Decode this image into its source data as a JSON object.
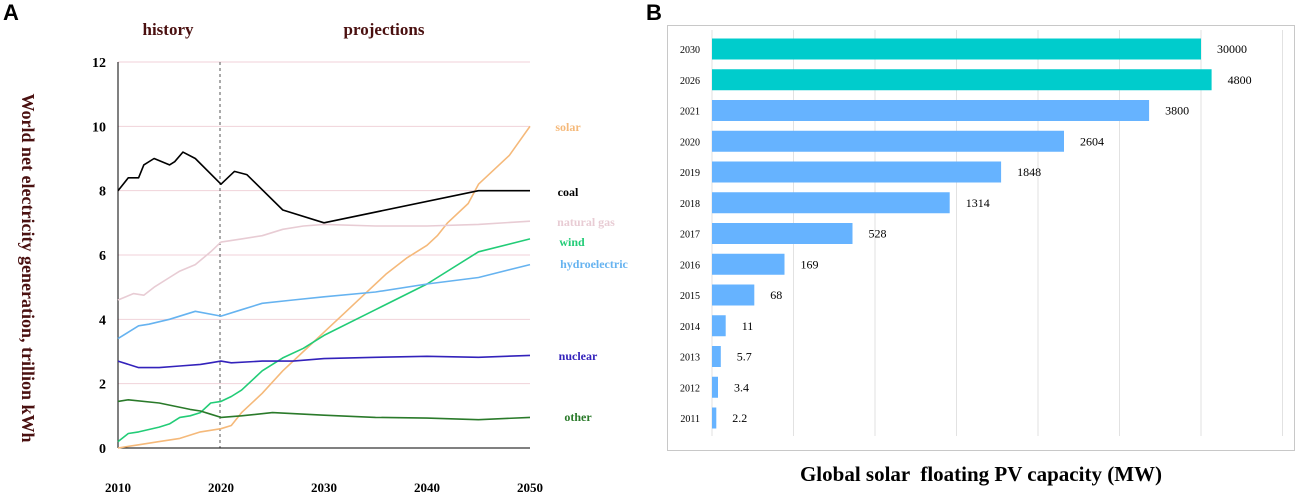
{
  "panels": {
    "a": "A",
    "b": "B"
  },
  "chart_data": [
    {
      "type": "line",
      "panel": "A",
      "ylabel": "World net electricity generation, trillion kWh",
      "xlabel": "",
      "xlim": [
        2010,
        2050
      ],
      "ylim": [
        0,
        12
      ],
      "xticks": [
        2010,
        2020,
        2030,
        2040,
        2050
      ],
      "yticks": [
        0,
        2,
        4,
        6,
        8,
        10,
        12
      ],
      "divider_x": 2020,
      "section_labels": {
        "history": "history",
        "projections": "projections"
      },
      "series": [
        {
          "name": "solar",
          "color": "#f5b97a",
          "points": [
            [
              2010,
              0
            ],
            [
              2012,
              0.1
            ],
            [
              2014,
              0.2
            ],
            [
              2016,
              0.3
            ],
            [
              2018,
              0.5
            ],
            [
              2020,
              0.6
            ],
            [
              2021,
              0.7
            ],
            [
              2022,
              1.1
            ],
            [
              2024,
              1.7
            ],
            [
              2026,
              2.4
            ],
            [
              2028,
              3.0
            ],
            [
              2030,
              3.6
            ],
            [
              2032,
              4.2
            ],
            [
              2034,
              4.8
            ],
            [
              2036,
              5.4
            ],
            [
              2038,
              5.9
            ],
            [
              2040,
              6.3
            ],
            [
              2041,
              6.6
            ],
            [
              2042,
              7.0
            ],
            [
              2044,
              7.6
            ],
            [
              2045,
              8.2
            ],
            [
              2046,
              8.5
            ],
            [
              2048,
              9.1
            ],
            [
              2050,
              10.0
            ]
          ]
        },
        {
          "name": "coal",
          "color": "#000000",
          "points": [
            [
              2010,
              8
            ],
            [
              2011,
              8.4
            ],
            [
              2012,
              8.4
            ],
            [
              2012.5,
              8.8
            ],
            [
              2013.5,
              9.0
            ],
            [
              2015,
              8.8
            ],
            [
              2015.5,
              8.9
            ],
            [
              2016.3,
              9.2
            ],
            [
              2017.5,
              9.0
            ],
            [
              2020,
              8.2
            ],
            [
              2021.3,
              8.6
            ],
            [
              2022.5,
              8.5
            ],
            [
              2026,
              7.4
            ],
            [
              2030,
              7.0
            ],
            [
              2045,
              8.0
            ],
            [
              2050,
              8.0
            ]
          ]
        },
        {
          "name": "natural gas",
          "color": "#e8ccd4",
          "points": [
            [
              2010,
              4.6
            ],
            [
              2011.5,
              4.8
            ],
            [
              2012.5,
              4.75
            ],
            [
              2013.5,
              5.0
            ],
            [
              2015,
              5.3
            ],
            [
              2016,
              5.5
            ],
            [
              2017.5,
              5.7
            ],
            [
              2019,
              6.1
            ],
            [
              2020,
              6.4
            ],
            [
              2022,
              6.5
            ],
            [
              2024,
              6.6
            ],
            [
              2026,
              6.8
            ],
            [
              2028,
              6.9
            ],
            [
              2030,
              6.95
            ],
            [
              2035,
              6.9
            ],
            [
              2040,
              6.9
            ],
            [
              2045,
              6.95
            ],
            [
              2050,
              7.05
            ]
          ]
        },
        {
          "name": "wind",
          "color": "#22cc77",
          "points": [
            [
              2010,
              0.2
            ],
            [
              2011,
              0.45
            ],
            [
              2012,
              0.5
            ],
            [
              2014,
              0.65
            ],
            [
              2015,
              0.75
            ],
            [
              2016,
              0.95
            ],
            [
              2017,
              1.0
            ],
            [
              2018,
              1.1
            ],
            [
              2019,
              1.4
            ],
            [
              2020,
              1.45
            ],
            [
              2021,
              1.6
            ],
            [
              2022,
              1.8
            ],
            [
              2024,
              2.4
            ],
            [
              2026,
              2.8
            ],
            [
              2028,
              3.1
            ],
            [
              2030,
              3.5
            ],
            [
              2035,
              4.3
            ],
            [
              2040,
              5.1
            ],
            [
              2045,
              6.1
            ],
            [
              2050,
              6.5
            ]
          ]
        },
        {
          "name": "hydroelectric",
          "color": "#66b3f0",
          "points": [
            [
              2010,
              3.4
            ],
            [
              2011,
              3.6
            ],
            [
              2012,
              3.8
            ],
            [
              2013,
              3.85
            ],
            [
              2015,
              4.0
            ],
            [
              2017.5,
              4.25
            ],
            [
              2020,
              4.1
            ],
            [
              2022,
              4.3
            ],
            [
              2024,
              4.5
            ],
            [
              2027,
              4.6
            ],
            [
              2030,
              4.7
            ],
            [
              2035,
              4.85
            ],
            [
              2040,
              5.1
            ],
            [
              2045,
              5.3
            ],
            [
              2050,
              5.7
            ]
          ]
        },
        {
          "name": "nuclear",
          "color": "#3322bb",
          "points": [
            [
              2010,
              2.7
            ],
            [
              2012,
              2.5
            ],
            [
              2014,
              2.5
            ],
            [
              2016,
              2.55
            ],
            [
              2018,
              2.6
            ],
            [
              2019,
              2.65
            ],
            [
              2020,
              2.7
            ],
            [
              2021,
              2.65
            ],
            [
              2024,
              2.7
            ],
            [
              2027,
              2.7
            ],
            [
              2030,
              2.78
            ],
            [
              2035,
              2.82
            ],
            [
              2040,
              2.85
            ],
            [
              2045,
              2.82
            ],
            [
              2050,
              2.88
            ]
          ]
        },
        {
          "name": "other",
          "color": "#2a7a2a",
          "points": [
            [
              2010,
              1.45
            ],
            [
              2011,
              1.5
            ],
            [
              2014,
              1.4
            ],
            [
              2017,
              1.2
            ],
            [
              2018,
              1.15
            ],
            [
              2019,
              1.05
            ],
            [
              2020,
              0.95
            ],
            [
              2022,
              1.0
            ],
            [
              2025,
              1.1
            ],
            [
              2030,
              1.02
            ],
            [
              2035,
              0.95
            ],
            [
              2040,
              0.93
            ],
            [
              2045,
              0.88
            ],
            [
              2050,
              0.95
            ]
          ]
        }
      ]
    },
    {
      "type": "bar",
      "panel": "B",
      "orientation": "horizontal",
      "title": "",
      "xlabel": "Global solar  floating PV capacity (MW)",
      "categories": [
        "2030",
        "2026",
        "2021",
        "2020",
        "2019",
        "2018",
        "2017",
        "2016",
        "2015",
        "2014",
        "2013",
        "2012",
        "2011"
      ],
      "values": [
        30000,
        4800,
        3800,
        2604,
        1848,
        1314,
        528,
        169,
        68,
        11,
        5.7,
        3.4,
        2.2
      ],
      "value_labels": [
        "30000",
        "4800",
        "3800",
        "2604",
        "1848",
        "1314",
        "528",
        "169",
        "68",
        "11",
        "5.7",
        "3.4",
        "2.2"
      ],
      "bar_colors": [
        "#00cccc",
        "#00cccc",
        "#66b3ff",
        "#66b3ff",
        "#66b3ff",
        "#66b3ff",
        "#66b3ff",
        "#66b3ff",
        "#66b3ff",
        "#66b3ff",
        "#66b3ff",
        "#66b3ff",
        "#66b3ff"
      ],
      "display_scale": "nonlinear (bars drawn shorter than linear scale)",
      "gridlines": 8
    }
  ]
}
